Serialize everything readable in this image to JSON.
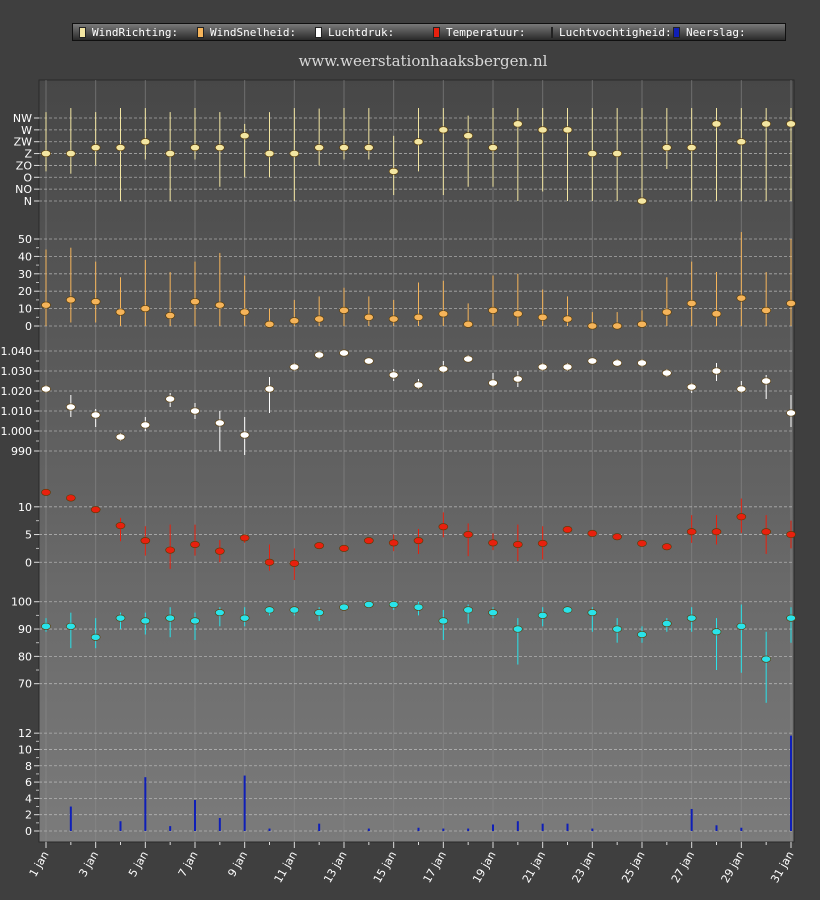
{
  "legend": {
    "items": [
      {
        "label": "WindRichting:",
        "color": "#f3e6a2"
      },
      {
        "label": "WindSnelheid:",
        "color": "#f5b45a"
      },
      {
        "label": "Luchtdruk:",
        "color": "#ffffff"
      },
      {
        "label": "Temperatuur:",
        "color": "#e8200e"
      },
      {
        "label": "Luchtvochtigheid:",
        "color": "#29e3ea"
      },
      {
        "label": "Neerslag:",
        "color": "#0f1fb8"
      }
    ]
  },
  "site_title": "www.weerstationhaaksbergen.nl",
  "chart_data": {
    "type": "line",
    "x_tick_labels": [
      "1 jan",
      "3 jan",
      "5 jan",
      "7 jan",
      "9 jan",
      "11 jan",
      "13 jan",
      "15 jan",
      "17 jan",
      "19 jan",
      "21 jan",
      "23 jan",
      "25 jan",
      "27 jan",
      "29 jan",
      "31 jan"
    ],
    "days": [
      1,
      2,
      3,
      4,
      5,
      6,
      7,
      8,
      9,
      10,
      11,
      12,
      13,
      14,
      15,
      16,
      17,
      18,
      19,
      20,
      21,
      22,
      23,
      24,
      25,
      26,
      27,
      28,
      29,
      30,
      31
    ],
    "panels": [
      {
        "series_name": "WindRichting",
        "color": "#f3e6a2",
        "y_tick_labels": [
          "N",
          "NO",
          "O",
          "ZO",
          "Z",
          "ZW",
          "W",
          "NW"
        ],
        "ylim": [
          0,
          7
        ],
        "values": [
          4,
          4,
          4.5,
          4.5,
          5,
          4,
          4.5,
          4.5,
          5.5,
          4,
          4,
          4.5,
          4.5,
          4.5,
          2.5,
          5,
          6,
          5.5,
          4.5,
          6.5,
          6,
          6,
          4,
          4,
          0,
          4.5,
          4.5,
          6.5,
          5,
          6.5,
          6.5
        ],
        "low": [
          2.5,
          2.3,
          3,
          0,
          3.5,
          0,
          3.5,
          1.2,
          2,
          2,
          0,
          3,
          3.5,
          3.5,
          0.5,
          2.5,
          0.5,
          1.2,
          1.2,
          0,
          0.8,
          0,
          0,
          0,
          0,
          2.7,
          0,
          0,
          0,
          0,
          0
        ],
        "high": [
          7.5,
          8,
          7.5,
          8,
          8,
          7.5,
          8,
          7.5,
          6.5,
          7.5,
          8,
          7.8,
          8,
          8,
          5.5,
          8,
          8,
          7.2,
          8,
          8,
          8,
          8,
          8,
          8,
          8,
          8,
          8,
          8,
          8,
          8,
          8
        ]
      },
      {
        "series_name": "WindSnelheid",
        "color": "#f5b45a",
        "y_tick_labels": [
          "0",
          "10",
          "20",
          "30",
          "40",
          "50"
        ],
        "ylim": [
          0,
          50
        ],
        "values": [
          12,
          15,
          14,
          8,
          10,
          6,
          14,
          12,
          8,
          1,
          3,
          4,
          9,
          5,
          4,
          5,
          7,
          1,
          9,
          7,
          5,
          4,
          0,
          0,
          1,
          8,
          13,
          7,
          16,
          9,
          13
        ],
        "low": [
          0,
          2,
          2,
          0,
          0,
          0,
          0,
          0,
          0,
          0,
          0,
          0,
          0,
          0,
          0,
          0,
          0,
          0,
          0,
          0,
          0,
          0,
          0,
          0,
          0,
          0,
          0,
          0,
          0,
          0,
          0
        ],
        "high": [
          44,
          45,
          37,
          28,
          38,
          31,
          37,
          42,
          29,
          10,
          15,
          17,
          22,
          17,
          15,
          25,
          26,
          13,
          29,
          30,
          21,
          17,
          8,
          8,
          9,
          28,
          37,
          31,
          54,
          31,
          50
        ]
      },
      {
        "series_name": "Luchtdruk",
        "color": "#ffffff",
        "y_tick_labels": [
          "990",
          "1.000",
          "1.010",
          "1.020",
          "1.030",
          "1.040"
        ],
        "ylim": [
          985,
          1045
        ],
        "values": [
          1021,
          1012,
          1008,
          997,
          1003,
          1016,
          1010,
          1004,
          998,
          1021,
          1032,
          1038,
          1039,
          1035,
          1028,
          1023,
          1031,
          1036,
          1024,
          1026,
          1032,
          1032,
          1035,
          1034,
          1034,
          1029,
          1022,
          1030,
          1021,
          1025,
          1009
        ],
        "low": [
          1019,
          1007,
          1002,
          995,
          1000,
          1012,
          1006,
          990,
          988,
          1009,
          1030,
          1036,
          1038,
          1034,
          1025,
          1021,
          1029,
          1035,
          1022,
          1022,
          1030,
          1030,
          1034,
          1033,
          1032,
          1027,
          1019,
          1025,
          1019,
          1016,
          1002
        ],
        "high": [
          1023,
          1018,
          1011,
          999,
          1007,
          1019,
          1014,
          1010,
          1007,
          1027,
          1034,
          1040,
          1040,
          1036,
          1031,
          1026,
          1035,
          1038,
          1029,
          1030,
          1034,
          1034,
          1036,
          1036,
          1036,
          1031,
          1024,
          1034,
          1025,
          1028,
          1018
        ]
      },
      {
        "series_name": "Temperatuur",
        "color": "#e8200e",
        "y_tick_labels": [
          "0",
          "5",
          "10"
        ],
        "ylim": [
          -5,
          17
        ],
        "values": [
          12.6,
          11.6,
          9.5,
          6.6,
          3.9,
          2.2,
          3.2,
          2,
          4.4,
          0,
          -0.2,
          3,
          2.5,
          3.9,
          3.5,
          3.9,
          6.4,
          5,
          3.5,
          3.2,
          3.4,
          5.9,
          5.2,
          4.6,
          3.4,
          2.8,
          5.5,
          5.5,
          8.2,
          5.5,
          5
        ],
        "low": [
          12.3,
          11.3,
          9.3,
          3.8,
          1.2,
          -1.2,
          1.2,
          0,
          3.5,
          -1.5,
          -3.2,
          2.8,
          2.2,
          3.5,
          2,
          1.5,
          4.5,
          1.1,
          2.2,
          0.2,
          0.5,
          5.6,
          5.0,
          4.3,
          2.8,
          2.2,
          3.5,
          3.2,
          5.3,
          1.5,
          2.5
        ],
        "high": [
          12.9,
          11.9,
          9.8,
          8,
          6.5,
          6.8,
          6.8,
          4,
          5,
          3.2,
          2.5,
          3.2,
          2.8,
          4.2,
          5,
          6,
          9,
          7,
          5.2,
          6.8,
          6.5,
          6.2,
          5.4,
          4.9,
          4,
          3.2,
          8.5,
          8.5,
          11.5,
          8.5,
          7.5
        ]
      },
      {
        "series_name": "Luchtvochtigheid",
        "color": "#29e3ea",
        "y_tick_labels": [
          "70",
          "80",
          "90",
          "100"
        ],
        "ylim": [
          60,
          101
        ],
        "values": [
          91,
          91,
          87,
          94,
          93,
          94,
          93,
          96,
          94,
          97,
          97,
          96,
          98,
          99,
          99,
          98,
          93,
          97,
          96,
          90,
          95,
          97,
          96,
          90,
          88,
          92,
          94,
          89,
          91,
          79,
          94
        ],
        "low": [
          89,
          83,
          83,
          90,
          88,
          87,
          86,
          91,
          91,
          95,
          95,
          93,
          97,
          98,
          97,
          95,
          86,
          92,
          94,
          77,
          91,
          96,
          89,
          85,
          85,
          89,
          89,
          75,
          74,
          63,
          85
        ],
        "high": [
          94,
          96,
          94,
          96,
          96,
          98,
          96,
          98,
          98,
          98,
          98,
          98,
          99,
          100,
          100,
          100,
          97,
          99,
          98,
          94,
          98,
          98,
          98,
          94,
          91,
          94,
          98,
          94,
          99,
          89,
          98
        ]
      },
      {
        "series_name": "Neerslag",
        "color": "#0f1fb8",
        "type": "bar",
        "y_tick_labels": [
          "0",
          "2",
          "4",
          "6",
          "8",
          "10",
          "12"
        ],
        "ylim": [
          0,
          13
        ],
        "values": [
          0,
          3,
          0,
          1.2,
          6.6,
          0.6,
          3.8,
          1.6,
          6.8,
          0.3,
          0,
          0.9,
          0,
          0.3,
          0,
          0.4,
          0.3,
          0.3,
          0.8,
          1.2,
          0.9,
          0.9,
          0.3,
          0,
          0,
          0,
          2.7,
          0.7,
          0.4,
          0,
          11.7
        ]
      }
    ]
  }
}
